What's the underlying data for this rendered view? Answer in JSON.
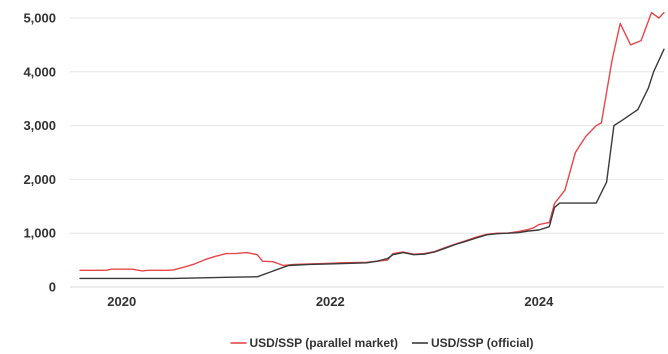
{
  "chart_data": {
    "type": "line",
    "title": "",
    "xlabel": "",
    "ylabel": "",
    "xlim": [
      2019.6,
      2025.2
    ],
    "ylim": [
      0,
      5000
    ],
    "grid": true,
    "legend_position": "bottom-center",
    "y_ticks": [
      {
        "value": 0,
        "label": "0"
      },
      {
        "value": 1000,
        "label": "1,000"
      },
      {
        "value": 2000,
        "label": "2,000"
      },
      {
        "value": 3000,
        "label": "3,000"
      },
      {
        "value": 4000,
        "label": "4,000"
      },
      {
        "value": 5000,
        "label": "5,000"
      }
    ],
    "x_ticks": [
      {
        "value": 2020,
        "label": "2020"
      },
      {
        "value": 2022,
        "label": "2022"
      },
      {
        "value": 2024,
        "label": "2024"
      }
    ],
    "series": [
      {
        "name": "USD/SSP (parallel market)",
        "color": "#e8474c",
        "points": [
          [
            2019.6,
            310
          ],
          [
            2019.85,
            310
          ],
          [
            2019.9,
            330
          ],
          [
            2020.1,
            330
          ],
          [
            2020.2,
            300
          ],
          [
            2020.25,
            310
          ],
          [
            2020.45,
            310
          ],
          [
            2020.5,
            320
          ],
          [
            2020.6,
            370
          ],
          [
            2020.7,
            430
          ],
          [
            2020.8,
            510
          ],
          [
            2020.9,
            570
          ],
          [
            2021.0,
            620
          ],
          [
            2021.1,
            625
          ],
          [
            2021.2,
            640
          ],
          [
            2021.3,
            600
          ],
          [
            2021.35,
            480
          ],
          [
            2021.45,
            470
          ],
          [
            2021.55,
            400
          ],
          [
            2021.65,
            420
          ],
          [
            2021.8,
            430
          ],
          [
            2022.0,
            440
          ],
          [
            2022.1,
            450
          ],
          [
            2022.35,
            460
          ],
          [
            2022.45,
            480
          ],
          [
            2022.55,
            500
          ],
          [
            2022.6,
            620
          ],
          [
            2022.7,
            650
          ],
          [
            2022.8,
            610
          ],
          [
            2022.9,
            620
          ],
          [
            2023.0,
            660
          ],
          [
            2023.1,
            730
          ],
          [
            2023.2,
            800
          ],
          [
            2023.3,
            860
          ],
          [
            2023.4,
            930
          ],
          [
            2023.5,
            980
          ],
          [
            2023.6,
            1000
          ],
          [
            2023.7,
            1000
          ],
          [
            2023.8,
            1030
          ],
          [
            2023.9,
            1070
          ],
          [
            2023.95,
            1100
          ],
          [
            2024.0,
            1160
          ],
          [
            2024.1,
            1200
          ],
          [
            2024.15,
            1550
          ],
          [
            2024.25,
            1800
          ],
          [
            2024.35,
            2500
          ],
          [
            2024.45,
            2800
          ],
          [
            2024.55,
            3000
          ],
          [
            2024.6,
            3050
          ],
          [
            2024.7,
            4200
          ],
          [
            2024.78,
            4900
          ],
          [
            2024.88,
            4500
          ],
          [
            2024.98,
            4580
          ],
          [
            2025.08,
            5100
          ],
          [
            2025.15,
            5000
          ],
          [
            2025.2,
            5100
          ]
        ]
      },
      {
        "name": "USD/SSP (official)",
        "color": "#3a3a3a",
        "points": [
          [
            2019.6,
            160
          ],
          [
            2020.0,
            160
          ],
          [
            2020.5,
            160
          ],
          [
            2021.0,
            180
          ],
          [
            2021.3,
            190
          ],
          [
            2021.4,
            260
          ],
          [
            2021.5,
            330
          ],
          [
            2021.6,
            400
          ],
          [
            2021.8,
            420
          ],
          [
            2022.0,
            430
          ],
          [
            2022.2,
            440
          ],
          [
            2022.35,
            450
          ],
          [
            2022.45,
            480
          ],
          [
            2022.55,
            530
          ],
          [
            2022.6,
            600
          ],
          [
            2022.7,
            640
          ],
          [
            2022.8,
            600
          ],
          [
            2022.9,
            610
          ],
          [
            2023.0,
            650
          ],
          [
            2023.1,
            720
          ],
          [
            2023.2,
            790
          ],
          [
            2023.3,
            850
          ],
          [
            2023.4,
            910
          ],
          [
            2023.5,
            970
          ],
          [
            2023.6,
            990
          ],
          [
            2023.7,
            1000
          ],
          [
            2023.8,
            1010
          ],
          [
            2023.9,
            1040
          ],
          [
            2024.0,
            1060
          ],
          [
            2024.1,
            1120
          ],
          [
            2024.15,
            1480
          ],
          [
            2024.2,
            1560
          ],
          [
            2024.35,
            1560
          ],
          [
            2024.5,
            1560
          ],
          [
            2024.55,
            1560
          ],
          [
            2024.65,
            1950
          ],
          [
            2024.72,
            3000
          ],
          [
            2024.8,
            3100
          ],
          [
            2024.95,
            3300
          ],
          [
            2025.05,
            3700
          ],
          [
            2025.1,
            4000
          ],
          [
            2025.2,
            4420
          ]
        ]
      }
    ]
  }
}
